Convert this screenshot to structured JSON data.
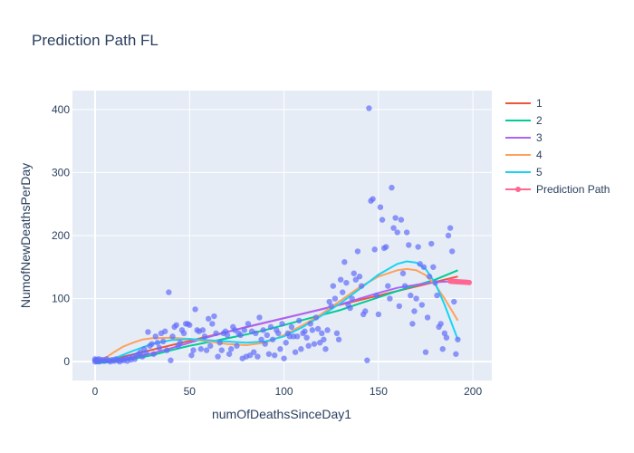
{
  "chart_data": {
    "type": "scatter",
    "title": "Prediction Path FL",
    "xlabel": "numOfDeathsSinceDay1",
    "ylabel": "NumofNewDeathsPerDay",
    "xlim": [
      -12,
      210
    ],
    "ylim": [
      -30,
      430
    ],
    "xticks": [
      0,
      50,
      100,
      150,
      200
    ],
    "yticks": [
      0,
      100,
      200,
      300,
      400
    ],
    "grid": true,
    "legend_position": "top-right",
    "colors": {
      "background": "#e5ecf6",
      "scatter": "#636efa",
      "deg1": "#ef553b",
      "deg2": "#00cc96",
      "deg3": "#ab63fa",
      "deg4": "#ffa15a",
      "deg5": "#19d3f3",
      "prediction": "#ff6692"
    },
    "scatter_points": [
      [
        0,
        2
      ],
      [
        0,
        4
      ],
      [
        0,
        0
      ],
      [
        1,
        3
      ],
      [
        1,
        1
      ],
      [
        2,
        4
      ],
      [
        2,
        0
      ],
      [
        3,
        2
      ],
      [
        4,
        3
      ],
      [
        5,
        1
      ],
      [
        6,
        4
      ],
      [
        7,
        2
      ],
      [
        8,
        0
      ],
      [
        9,
        3
      ],
      [
        10,
        1
      ],
      [
        11,
        4
      ],
      [
        12,
        2
      ],
      [
        13,
        0
      ],
      [
        14,
        3
      ],
      [
        15,
        2
      ],
      [
        16,
        5
      ],
      [
        17,
        1
      ],
      [
        18,
        6
      ],
      [
        19,
        3
      ],
      [
        20,
        8
      ],
      [
        21,
        4
      ],
      [
        22,
        10
      ],
      [
        23,
        12
      ],
      [
        24,
        15
      ],
      [
        25,
        8
      ],
      [
        26,
        20
      ],
      [
        27,
        14
      ],
      [
        28,
        47
      ],
      [
        29,
        25
      ],
      [
        30,
        28
      ],
      [
        31,
        12
      ],
      [
        32,
        40
      ],
      [
        33,
        30
      ],
      [
        34,
        22
      ],
      [
        35,
        45
      ],
      [
        36,
        32
      ],
      [
        37,
        48
      ],
      [
        38,
        18
      ],
      [
        39,
        110
      ],
      [
        40,
        2
      ],
      [
        41,
        40
      ],
      [
        42,
        55
      ],
      [
        43,
        58
      ],
      [
        44,
        25
      ],
      [
        45,
        30
      ],
      [
        46,
        50
      ],
      [
        47,
        45
      ],
      [
        48,
        60
      ],
      [
        49,
        60
      ],
      [
        50,
        58
      ],
      [
        51,
        10
      ],
      [
        52,
        18
      ],
      [
        53,
        83
      ],
      [
        54,
        50
      ],
      [
        55,
        48
      ],
      [
        56,
        20
      ],
      [
        57,
        50
      ],
      [
        58,
        40
      ],
      [
        59,
        18
      ],
      [
        60,
        68
      ],
      [
        61,
        25
      ],
      [
        62,
        60
      ],
      [
        63,
        72
      ],
      [
        64,
        45
      ],
      [
        65,
        8
      ],
      [
        66,
        30
      ],
      [
        67,
        18
      ],
      [
        68,
        45
      ],
      [
        69,
        48
      ],
      [
        70,
        42
      ],
      [
        71,
        12
      ],
      [
        72,
        20
      ],
      [
        73,
        55
      ],
      [
        74,
        50
      ],
      [
        75,
        25
      ],
      [
        76,
        45
      ],
      [
        77,
        42
      ],
      [
        78,
        5
      ],
      [
        79,
        50
      ],
      [
        80,
        8
      ],
      [
        81,
        60
      ],
      [
        82,
        10
      ],
      [
        83,
        48
      ],
      [
        84,
        15
      ],
      [
        85,
        45
      ],
      [
        86,
        8
      ],
      [
        87,
        70
      ],
      [
        88,
        35
      ],
      [
        89,
        50
      ],
      [
        90,
        28
      ],
      [
        91,
        42
      ],
      [
        92,
        12
      ],
      [
        93,
        55
      ],
      [
        94,
        35
      ],
      [
        95,
        10
      ],
      [
        96,
        50
      ],
      [
        97,
        45
      ],
      [
        98,
        20
      ],
      [
        99,
        60
      ],
      [
        100,
        5
      ],
      [
        101,
        30
      ],
      [
        102,
        45
      ],
      [
        103,
        40
      ],
      [
        104,
        55
      ],
      [
        105,
        40
      ],
      [
        106,
        15
      ],
      [
        107,
        40
      ],
      [
        108,
        65
      ],
      [
        109,
        20
      ],
      [
        110,
        45
      ],
      [
        111,
        48
      ],
      [
        112,
        38
      ],
      [
        113,
        25
      ],
      [
        114,
        60
      ],
      [
        115,
        50
      ],
      [
        116,
        28
      ],
      [
        117,
        70
      ],
      [
        118,
        52
      ],
      [
        119,
        30
      ],
      [
        120,
        45
      ],
      [
        121,
        35
      ],
      [
        122,
        20
      ],
      [
        123,
        50
      ],
      [
        124,
        95
      ],
      [
        125,
        88
      ],
      [
        126,
        120
      ],
      [
        127,
        100
      ],
      [
        128,
        45
      ],
      [
        129,
        35
      ],
      [
        130,
        130
      ],
      [
        131,
        110
      ],
      [
        132,
        158
      ],
      [
        133,
        125
      ],
      [
        134,
        90
      ],
      [
        135,
        85
      ],
      [
        136,
        100
      ],
      [
        137,
        140
      ],
      [
        138,
        130
      ],
      [
        139,
        175
      ],
      [
        140,
        135
      ],
      [
        141,
        120
      ],
      [
        142,
        75
      ],
      [
        143,
        80
      ],
      [
        144,
        2
      ],
      [
        145,
        402
      ],
      [
        146,
        255
      ],
      [
        147,
        258
      ],
      [
        148,
        178
      ],
      [
        149,
        105
      ],
      [
        150,
        75
      ],
      [
        151,
        245
      ],
      [
        152,
        225
      ],
      [
        153,
        180
      ],
      [
        154,
        182
      ],
      [
        155,
        120
      ],
      [
        156,
        100
      ],
      [
        157,
        276
      ],
      [
        158,
        212
      ],
      [
        159,
        228
      ],
      [
        160,
        205
      ],
      [
        161,
        88
      ],
      [
        162,
        225
      ],
      [
        163,
        140
      ],
      [
        164,
        120
      ],
      [
        165,
        205
      ],
      [
        166,
        185
      ],
      [
        167,
        105
      ],
      [
        168,
        60
      ],
      [
        169,
        80
      ],
      [
        170,
        100
      ],
      [
        171,
        182
      ],
      [
        172,
        155
      ],
      [
        173,
        90
      ],
      [
        174,
        150
      ],
      [
        175,
        15
      ],
      [
        176,
        70
      ],
      [
        177,
        135
      ],
      [
        178,
        187
      ],
      [
        179,
        150
      ],
      [
        180,
        125
      ],
      [
        181,
        105
      ],
      [
        182,
        55
      ],
      [
        183,
        60
      ],
      [
        184,
        20
      ],
      [
        185,
        45
      ],
      [
        186,
        38
      ],
      [
        187,
        200
      ],
      [
        188,
        212
      ],
      [
        189,
        175
      ],
      [
        190,
        95
      ],
      [
        191,
        12
      ],
      [
        192,
        35
      ]
    ],
    "series": [
      {
        "name": "1",
        "x": [
          0,
          192
        ],
        "y": [
          -3,
          135
        ]
      },
      {
        "name": "2",
        "x": [
          0,
          10,
          20,
          30,
          40,
          50,
          60,
          70,
          80,
          90,
          100,
          110,
          120,
          130,
          140,
          150,
          160,
          170,
          180,
          192
        ],
        "y": [
          -3,
          0,
          4,
          10,
          18,
          25,
          31,
          37,
          43,
          50,
          58,
          66,
          74,
          82,
          92,
          102,
          112,
          121,
          130,
          145
        ]
      },
      {
        "name": "3",
        "x": [
          0,
          10,
          20,
          30,
          40,
          50,
          60,
          70,
          80,
          90,
          100,
          110,
          120,
          130,
          140,
          150,
          160,
          170,
          180,
          192
        ],
        "y": [
          0,
          2,
          7,
          13,
          21,
          30,
          39,
          47,
          55,
          62,
          69,
          76,
          83,
          91,
          100,
          109,
          117,
          122,
          126,
          128
        ]
      },
      {
        "name": "4",
        "x": [
          0,
          5,
          10,
          15,
          20,
          25,
          30,
          40,
          50,
          60,
          70,
          80,
          90,
          100,
          110,
          120,
          130,
          140,
          150,
          160,
          165,
          170,
          175,
          180,
          185,
          192
        ],
        "y": [
          -3,
          5,
          15,
          24,
          30,
          35,
          37,
          38,
          36,
          32,
          28,
          26,
          30,
          42,
          58,
          76,
          97,
          118,
          135,
          145,
          147,
          145,
          137,
          122,
          100,
          65
        ]
      },
      {
        "name": "5",
        "x": [
          0,
          10,
          20,
          30,
          40,
          50,
          60,
          70,
          80,
          90,
          100,
          110,
          120,
          130,
          140,
          150,
          160,
          165,
          170,
          175,
          180,
          185,
          192
        ],
        "y": [
          -2,
          5,
          17,
          28,
          34,
          36,
          34,
          32,
          30,
          32,
          40,
          55,
          73,
          93,
          115,
          138,
          155,
          159,
          157,
          147,
          125,
          90,
          35
        ]
      }
    ],
    "prediction_path": {
      "name": "Prediction Path",
      "x": [
        188,
        189,
        190,
        191,
        192,
        193,
        194,
        195,
        196,
        197,
        198
      ],
      "y": [
        127.5,
        127.3,
        127.1,
        126.9,
        126.7,
        126.5,
        126.3,
        126.1,
        125.9,
        125.7,
        125.5
      ]
    },
    "legend": [
      "1",
      "2",
      "3",
      "4",
      "5",
      "Prediction Path"
    ]
  }
}
